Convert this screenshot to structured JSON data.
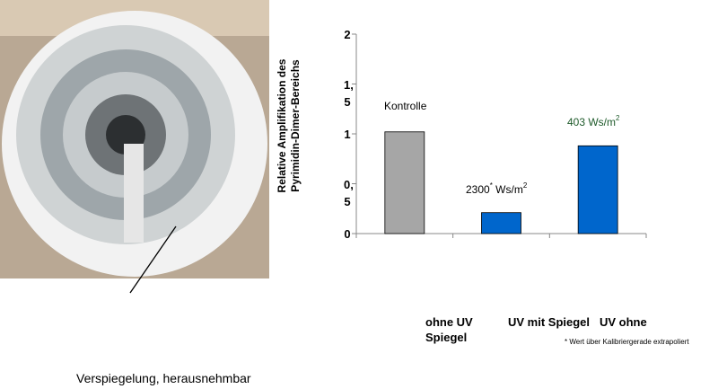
{
  "chart_data": {
    "type": "bar",
    "y_label": [
      "Relative Amplifikation des",
      "Pyrimidin-Dimer-Bereichs"
    ],
    "categories": [
      "ohne UV Spiegel",
      "UV mit Spiegel",
      "UV ohne"
    ],
    "values": [
      1.02,
      0.21,
      0.88
    ],
    "colors": [
      "#a6a6a6",
      "#0066cc",
      "#0066cc"
    ],
    "bar_labels": [
      [
        "Kontrolle"
      ],
      [
        "2300",
        "*",
        " Ws/m",
        "2"
      ],
      [
        "403 Ws/m",
        "2"
      ]
    ],
    "ylim": [
      0,
      2
    ],
    "yticks": [
      0,
      {
        "value": 0.5,
        "label": "0,5"
      },
      1,
      {
        "value": 1.5,
        "label": "1,5"
      },
      2
    ],
    "footnote": "* Wert über Kalibriergerade extrapoliert",
    "caption": "Verspiegelung, herausnehmbar"
  }
}
